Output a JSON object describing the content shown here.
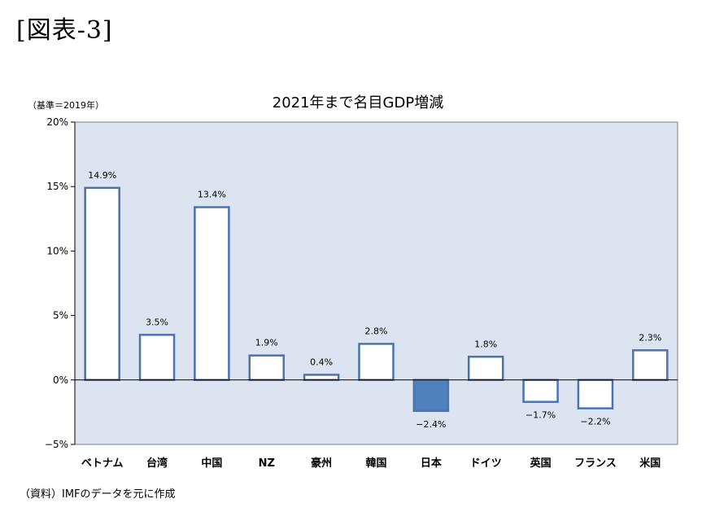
{
  "figure_label": "[図表-3]",
  "source_note": "（資料）IMFのデータを元に作成",
  "colors": {
    "plot_bg": "#dbe4f0",
    "bar_stroke": "#4a73b2",
    "bar_fill": "#ffffff",
    "bar_fill_highlight": "#4f81bd"
  },
  "chart_data": {
    "type": "bar",
    "title": "2021年まで名目GDP増減",
    "unit_label": "（基準＝2019年）",
    "xlabel": "",
    "ylabel": "",
    "ylim": [
      -5,
      20
    ],
    "yticks": [
      -5,
      0,
      5,
      10,
      15,
      20
    ],
    "ytick_labels": [
      "−5%",
      "0%",
      "5%",
      "10%",
      "15%",
      "20%"
    ],
    "grid": false,
    "legend": "none",
    "categories": [
      "ベトナム",
      "台湾",
      "中国",
      "NZ",
      "豪州",
      "韓国",
      "日本",
      "ドイツ",
      "英国",
      "フランス",
      "米国"
    ],
    "values": [
      14.9,
      3.5,
      13.4,
      1.9,
      0.4,
      2.8,
      -2.4,
      1.8,
      -1.7,
      -2.2,
      2.3
    ],
    "data_labels": [
      "14.9%",
      "3.5%",
      "13.4%",
      "1.9%",
      "0.4%",
      "2.8%",
      "−2.4%",
      "1.8%",
      "−1.7%",
      "−2.2%",
      "2.3%"
    ],
    "highlight_category": "日本"
  }
}
